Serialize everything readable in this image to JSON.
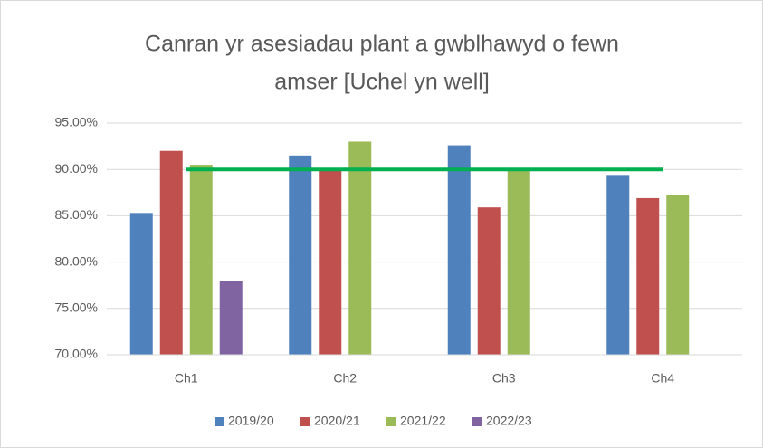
{
  "chart_data": {
    "type": "bar",
    "title_lines": [
      "Canran yr asesiadau plant a gwblhawyd o fewn",
      "amser [Uchel yn well]"
    ],
    "categories": [
      "Ch1",
      "Ch2",
      "Ch3",
      "Ch4"
    ],
    "series": [
      {
        "name": "2019/20",
        "color": "#4f81bd",
        "values": [
          85.3,
          91.5,
          92.6,
          89.4
        ]
      },
      {
        "name": "2020/21",
        "color": "#c0504d",
        "values": [
          92.0,
          89.9,
          85.9,
          86.9
        ]
      },
      {
        "name": "2021/22",
        "color": "#9bbb59",
        "values": [
          90.5,
          93.0,
          90.0,
          87.2
        ]
      },
      {
        "name": "2022/23",
        "color": "#8064a2",
        "values": [
          78.0,
          null,
          null,
          null
        ]
      }
    ],
    "target_line": {
      "type": "line",
      "color": "#00b050",
      "values": [
        90,
        90,
        90,
        90
      ]
    },
    "ylim": [
      70,
      95
    ],
    "yticks": [
      {
        "value": 70,
        "label": "70.00%"
      },
      {
        "value": 75,
        "label": "75.00%"
      },
      {
        "value": 80,
        "label": "80.00%"
      },
      {
        "value": 85,
        "label": "85.00%"
      },
      {
        "value": 90,
        "label": "90.00%"
      },
      {
        "value": 95,
        "label": "95.00%"
      }
    ],
    "grid": true,
    "legend": "bottom"
  }
}
